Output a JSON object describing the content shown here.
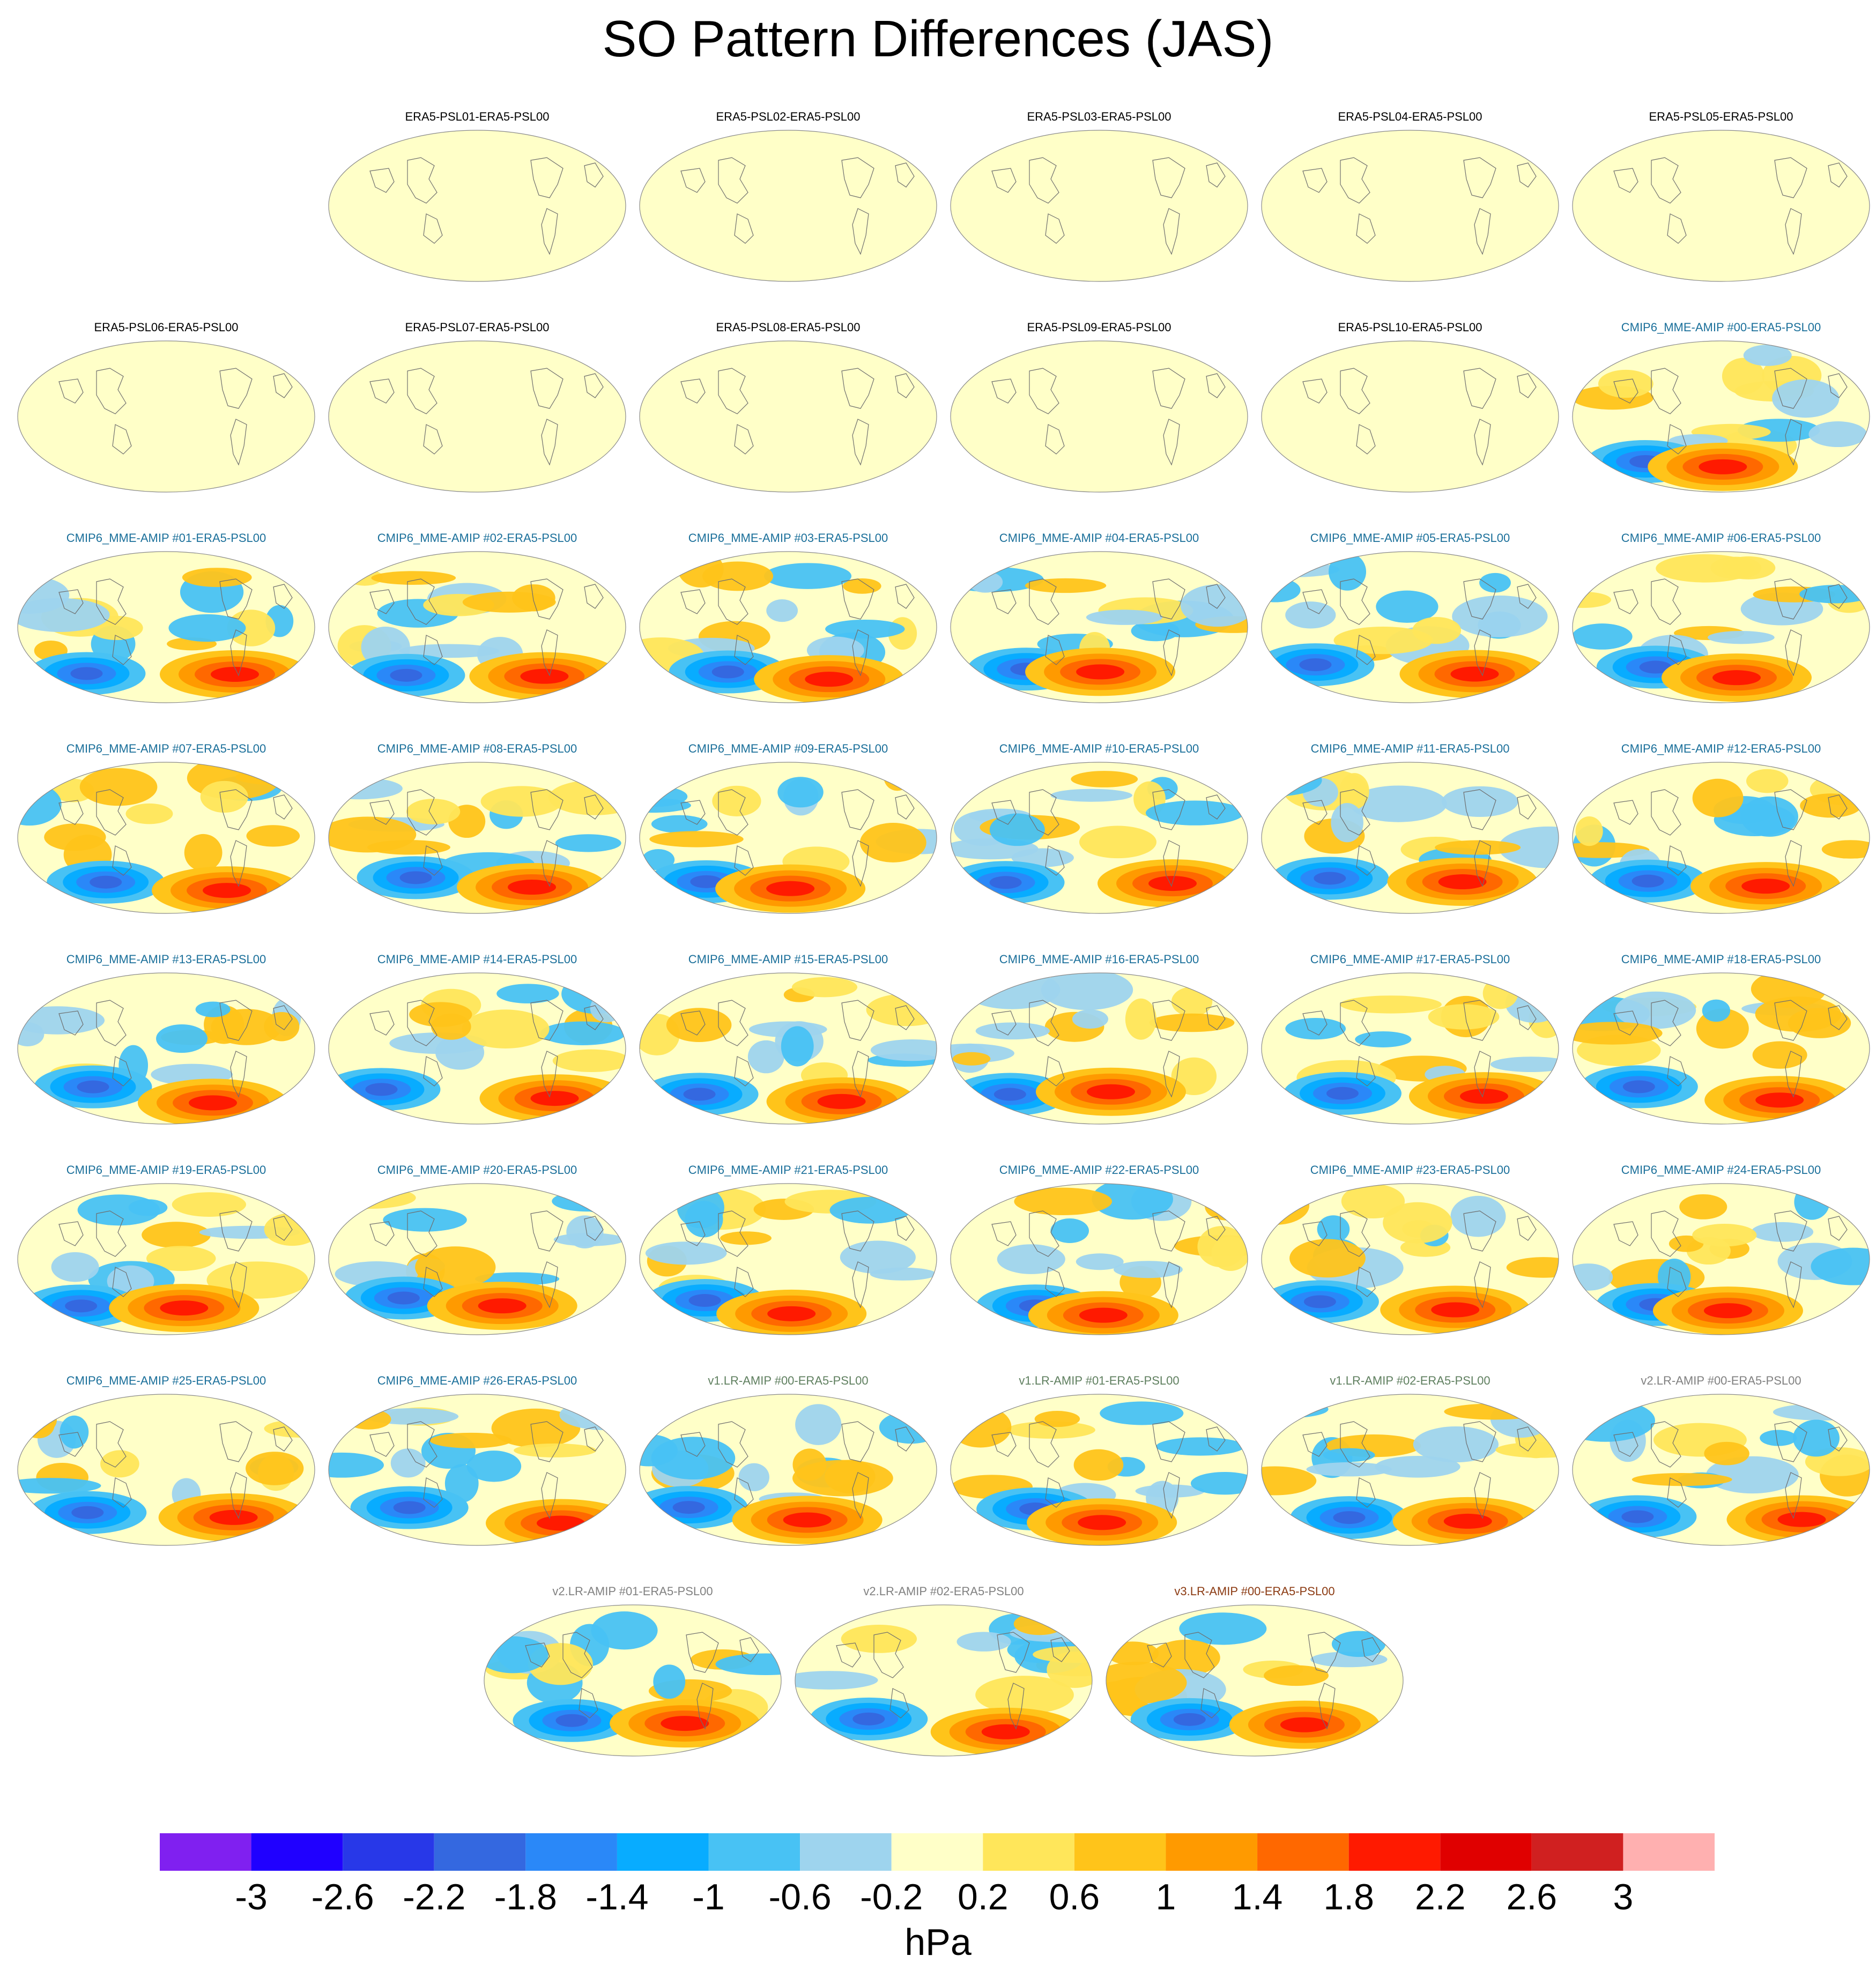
{
  "title": "SO Pattern Differences (JAS)",
  "chart_data": {
    "type": "heatmap",
    "title": "SO Pattern Differences (JAS)",
    "units": "hPa",
    "projection": "Robinson (Pacific-centered global maps)",
    "colorbar": {
      "levels": [
        -3,
        -2.6,
        -2.2,
        -1.8,
        -1.4,
        -1,
        -0.6,
        -0.2,
        0.2,
        0.6,
        1,
        1.4,
        1.8,
        2.2,
        2.6,
        3
      ],
      "tick_labels": [
        "-3",
        "-2.6",
        "-2.2",
        "-1.8",
        "-1.4",
        "-1",
        "-0.6",
        "-0.2",
        "0.2",
        "0.6",
        "1",
        "1.4",
        "1.8",
        "2.2",
        "2.6",
        "3"
      ],
      "colors": [
        "#8020f0",
        "#2000ff",
        "#2838e8",
        "#3468e0",
        "#2a88f8",
        "#08acff",
        "#48c2f4",
        "#9ed4ee",
        "#ffffc8",
        "#ffe65a",
        "#ffc41a",
        "#ff9a00",
        "#ff6800",
        "#ff1a00",
        "#e00000",
        "#d02020",
        "#ffb0b0"
      ]
    },
    "panels": [
      {
        "label": "ERA5-PSL01-ERA5-PSL00",
        "color": "#000000",
        "pattern": "none"
      },
      {
        "label": "ERA5-PSL02-ERA5-PSL00",
        "color": "#000000",
        "pattern": "none"
      },
      {
        "label": "ERA5-PSL03-ERA5-PSL00",
        "color": "#000000",
        "pattern": "none"
      },
      {
        "label": "ERA5-PSL04-ERA5-PSL00",
        "color": "#000000",
        "pattern": "none"
      },
      {
        "label": "ERA5-PSL05-ERA5-PSL00",
        "color": "#000000",
        "pattern": "none"
      },
      {
        "label": "ERA5-PSL06-ERA5-PSL00",
        "color": "#000000",
        "pattern": "none"
      },
      {
        "label": "ERA5-PSL07-ERA5-PSL00",
        "color": "#000000",
        "pattern": "none"
      },
      {
        "label": "ERA5-PSL08-ERA5-PSL00",
        "color": "#000000",
        "pattern": "none"
      },
      {
        "label": "ERA5-PSL09-ERA5-PSL00",
        "color": "#000000",
        "pattern": "none"
      },
      {
        "label": "ERA5-PSL10-ERA5-PSL00",
        "color": "#000000",
        "pattern": "none"
      },
      {
        "label": "CMIP6_MME-AMIP  #00-ERA5-PSL00",
        "color": "#1a6f9a",
        "pattern": "anomaly"
      },
      {
        "label": "CMIP6_MME-AMIP  #01-ERA5-PSL00",
        "color": "#1a6f9a",
        "pattern": "anomaly"
      },
      {
        "label": "CMIP6_MME-AMIP  #02-ERA5-PSL00",
        "color": "#1a6f9a",
        "pattern": "anomaly"
      },
      {
        "label": "CMIP6_MME-AMIP  #03-ERA5-PSL00",
        "color": "#1a6f9a",
        "pattern": "anomaly"
      },
      {
        "label": "CMIP6_MME-AMIP  #04-ERA5-PSL00",
        "color": "#1a6f9a",
        "pattern": "anomaly"
      },
      {
        "label": "CMIP6_MME-AMIP  #05-ERA5-PSL00",
        "color": "#1a6f9a",
        "pattern": "anomaly"
      },
      {
        "label": "CMIP6_MME-AMIP  #06-ERA5-PSL00",
        "color": "#1a6f9a",
        "pattern": "anomaly"
      },
      {
        "label": "CMIP6_MME-AMIP  #07-ERA5-PSL00",
        "color": "#1a6f9a",
        "pattern": "anomaly"
      },
      {
        "label": "CMIP6_MME-AMIP  #08-ERA5-PSL00",
        "color": "#1a6f9a",
        "pattern": "anomaly"
      },
      {
        "label": "CMIP6_MME-AMIP  #09-ERA5-PSL00",
        "color": "#1a6f9a",
        "pattern": "anomaly"
      },
      {
        "label": "CMIP6_MME-AMIP  #10-ERA5-PSL00",
        "color": "#1a6f9a",
        "pattern": "anomaly"
      },
      {
        "label": "CMIP6_MME-AMIP  #11-ERA5-PSL00",
        "color": "#1a6f9a",
        "pattern": "anomaly"
      },
      {
        "label": "CMIP6_MME-AMIP  #12-ERA5-PSL00",
        "color": "#1a6f9a",
        "pattern": "anomaly"
      },
      {
        "label": "CMIP6_MME-AMIP  #13-ERA5-PSL00",
        "color": "#1a6f9a",
        "pattern": "anomaly"
      },
      {
        "label": "CMIP6_MME-AMIP  #14-ERA5-PSL00",
        "color": "#1a6f9a",
        "pattern": "anomaly"
      },
      {
        "label": "CMIP6_MME-AMIP  #15-ERA5-PSL00",
        "color": "#1a6f9a",
        "pattern": "anomaly"
      },
      {
        "label": "CMIP6_MME-AMIP  #16-ERA5-PSL00",
        "color": "#1a6f9a",
        "pattern": "anomaly"
      },
      {
        "label": "CMIP6_MME-AMIP  #17-ERA5-PSL00",
        "color": "#1a6f9a",
        "pattern": "anomaly"
      },
      {
        "label": "CMIP6_MME-AMIP  #18-ERA5-PSL00",
        "color": "#1a6f9a",
        "pattern": "anomaly"
      },
      {
        "label": "CMIP6_MME-AMIP  #19-ERA5-PSL00",
        "color": "#1a6f9a",
        "pattern": "anomaly"
      },
      {
        "label": "CMIP6_MME-AMIP  #20-ERA5-PSL00",
        "color": "#1a6f9a",
        "pattern": "anomaly"
      },
      {
        "label": "CMIP6_MME-AMIP  #21-ERA5-PSL00",
        "color": "#1a6f9a",
        "pattern": "anomaly"
      },
      {
        "label": "CMIP6_MME-AMIP  #22-ERA5-PSL00",
        "color": "#1a6f9a",
        "pattern": "anomaly"
      },
      {
        "label": "CMIP6_MME-AMIP  #23-ERA5-PSL00",
        "color": "#1a6f9a",
        "pattern": "anomaly"
      },
      {
        "label": "CMIP6_MME-AMIP  #24-ERA5-PSL00",
        "color": "#1a6f9a",
        "pattern": "anomaly"
      },
      {
        "label": "CMIP6_MME-AMIP  #25-ERA5-PSL00",
        "color": "#1a6f9a",
        "pattern": "anomaly"
      },
      {
        "label": "CMIP6_MME-AMIP  #26-ERA5-PSL00",
        "color": "#1a6f9a",
        "pattern": "anomaly"
      },
      {
        "label": "v1.LR-AMIP  #00-ERA5-PSL00",
        "color": "#5f7f5f",
        "pattern": "anomaly"
      },
      {
        "label": "v1.LR-AMIP  #01-ERA5-PSL00",
        "color": "#5f7f5f",
        "pattern": "anomaly"
      },
      {
        "label": "v1.LR-AMIP  #02-ERA5-PSL00",
        "color": "#5f7f5f",
        "pattern": "anomaly"
      },
      {
        "label": "v2.LR-AMIP  #00-ERA5-PSL00",
        "color": "#808080",
        "pattern": "anomaly"
      },
      {
        "label": "v2.LR-AMIP  #01-ERA5-PSL00",
        "color": "#808080",
        "pattern": "anomaly"
      },
      {
        "label": "v2.LR-AMIP  #02-ERA5-PSL00",
        "color": "#808080",
        "pattern": "anomaly"
      },
      {
        "label": "v3.LR-AMIP  #00-ERA5-PSL00",
        "color": "#8b3a12",
        "pattern": "anomaly"
      }
    ]
  }
}
